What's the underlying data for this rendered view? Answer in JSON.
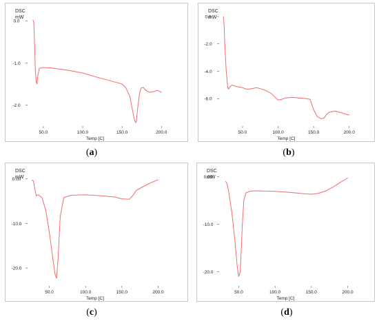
{
  "chart_data": [
    {
      "type": "line",
      "caption_letter": "a",
      "ylabel_top": "DSC",
      "ylabel_unit": "mW",
      "xlabel": "Temp [C]",
      "x_ticks": [
        50,
        100,
        150,
        200
      ],
      "x_tick_labels": [
        "50.0",
        "100.0",
        "150.0",
        "200.0"
      ],
      "y_ticks": [
        0,
        -1,
        -2
      ],
      "y_tick_labels": [
        "0.0",
        "-1.0",
        "-2.0"
      ],
      "xlim": [
        30,
        205
      ],
      "ylim": [
        -2.5,
        0.15
      ],
      "line_color": "#f26b6b",
      "series": [
        {
          "x": [
            37,
            38,
            39,
            40,
            41,
            42,
            43,
            45,
            50,
            60,
            80,
            100,
            120,
            140,
            150,
            155,
            160,
            163,
            165,
            167,
            168,
            170,
            172,
            174,
            177,
            180,
            185,
            190,
            195,
            197,
            200
          ],
          "y": [
            0.02,
            -0.05,
            -0.6,
            -1.2,
            -1.45,
            -1.5,
            -1.3,
            -1.13,
            -1.11,
            -1.12,
            -1.17,
            -1.24,
            -1.35,
            -1.45,
            -1.5,
            -1.6,
            -1.8,
            -2.1,
            -2.3,
            -2.42,
            -2.4,
            -2.05,
            -1.75,
            -1.6,
            -1.58,
            -1.65,
            -1.7,
            -1.68,
            -1.65,
            -1.67,
            -1.7
          ]
        }
      ]
    },
    {
      "type": "line",
      "caption_letter": "b",
      "ylabel_top": "DSC",
      "ylabel_unit": "mW",
      "xlabel": "Temp [C]",
      "x_ticks": [
        50,
        100,
        150,
        200
      ],
      "x_tick_labels": [
        "50.0",
        "100.0",
        "150.0",
        "200.0"
      ],
      "y_ticks": [
        0,
        -2,
        -4,
        -6
      ],
      "y_tick_labels": [
        "0.0",
        "-2.0",
        "-4.0",
        "-6.0"
      ],
      "xlim": [
        17,
        210
      ],
      "ylim": [
        -8,
        0.15
      ],
      "line_color": "#f26b6b",
      "series": [
        {
          "x": [
            23,
            24,
            25,
            27,
            29,
            30,
            32,
            35,
            40,
            50,
            55,
            60,
            70,
            80,
            90,
            95,
            100,
            105,
            110,
            120,
            130,
            140,
            145,
            150,
            155,
            160,
            163,
            165,
            168,
            172,
            180,
            190,
            200
          ],
          "y": [
            0.0,
            -0.6,
            -2.0,
            -4.0,
            -5.1,
            -5.3,
            -5.15,
            -5.0,
            -5.1,
            -5.2,
            -5.3,
            -5.3,
            -5.2,
            -5.35,
            -5.6,
            -5.85,
            -6.1,
            -6.05,
            -5.95,
            -5.9,
            -5.95,
            -6.0,
            -6.05,
            -6.8,
            -7.3,
            -7.45,
            -7.45,
            -7.4,
            -7.15,
            -7.0,
            -6.9,
            -7.05,
            -7.2
          ]
        }
      ]
    },
    {
      "type": "line",
      "caption_letter": "c",
      "ylabel_top": "DSC",
      "ylabel_unit": "mW",
      "xlabel": "Temp [C]",
      "x_ticks": [
        50,
        100,
        150,
        200
      ],
      "x_tick_labels": [
        "50.0",
        "100.0",
        "150.0",
        "200.0"
      ],
      "y_ticks": [
        0,
        -10,
        -20
      ],
      "y_tick_labels": [
        "0.00",
        "-10.0",
        "-20.0"
      ],
      "xlim": [
        20,
        210
      ],
      "ylim": [
        -24,
        1
      ],
      "line_color": "#f26b6b",
      "series": [
        {
          "x": [
            26,
            28,
            30,
            32,
            35,
            40,
            45,
            50,
            55,
            58,
            60,
            62,
            65,
            70,
            80,
            100,
            120,
            140,
            150,
            160,
            165,
            170,
            180,
            190,
            200
          ],
          "y": [
            -0.3,
            -0.5,
            -2.2,
            -3.8,
            -3.6,
            -4.3,
            -7.0,
            -12.0,
            -18.0,
            -21.5,
            -22.3,
            -18.0,
            -8.5,
            -4.2,
            -3.7,
            -3.6,
            -3.8,
            -4.1,
            -4.5,
            -4.6,
            -3.8,
            -2.6,
            -1.7,
            -0.9,
            -0.2
          ]
        }
      ]
    },
    {
      "type": "line",
      "caption_letter": "d",
      "ylabel_top": "DSC",
      "ylabel_unit": "mW",
      "xlabel": "Temp [C]",
      "x_ticks": [
        50,
        100,
        150,
        200
      ],
      "x_tick_labels": [
        "50.0",
        "100.0",
        "150.0",
        "200.0"
      ],
      "y_ticks": [
        0,
        -10,
        -20
      ],
      "y_tick_labels": [
        "0.00",
        "-10.0",
        "-20.0"
      ],
      "xlim": [
        23,
        210
      ],
      "ylim": [
        -23,
        0.5
      ],
      "line_color": "#f26b6b",
      "series": [
        {
          "x": [
            32,
            34,
            36,
            38,
            40,
            42,
            45,
            48,
            50,
            52,
            53,
            55,
            57,
            60,
            65,
            70,
            80,
            100,
            120,
            140,
            150,
            160,
            170,
            180,
            190,
            200
          ],
          "y": [
            -1.0,
            -1.5,
            -3.0,
            -5.0,
            -7.0,
            -9.5,
            -14.0,
            -19.0,
            -21.0,
            -20.0,
            -17.0,
            -10.0,
            -5.0,
            -3.4,
            -3.1,
            -3.0,
            -3.0,
            -3.1,
            -3.3,
            -3.6,
            -3.7,
            -3.5,
            -3.0,
            -2.2,
            -1.2,
            -0.3
          ]
        }
      ]
    }
  ]
}
